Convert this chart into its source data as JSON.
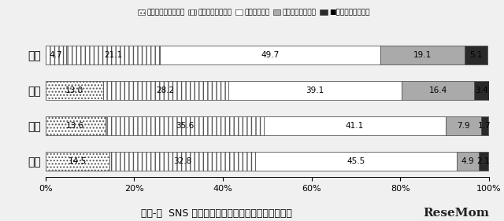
{
  "countries": [
    "日本",
    "米国",
    "中国",
    "韓国"
  ],
  "categories": [
    "非常に高くなった",
    "少し高くなった",
    "変わらない",
    "少し低くなった",
    "非常に低くなった"
  ],
  "values": [
    [
      4.7,
      21.1,
      49.7,
      19.1,
      5.1
    ],
    [
      13.0,
      28.2,
      39.1,
      16.4,
      3.4
    ],
    [
      13.6,
      35.6,
      41.1,
      7.9,
      1.7
    ],
    [
      14.5,
      32.8,
      45.5,
      4.9,
      2.1
    ]
  ],
  "colors": [
    "#ffffff",
    "#ffffff",
    "#ffffff",
    "#aaaaaa",
    "#2a2a2a"
  ],
  "hatches": [
    "....",
    "|||",
    "|||",
    "",
    ""
  ],
  "title": "図３-１  SNS の利用による学習に対する意欲の変化",
  "bg_color": "#f0f0f0",
  "legend_labels": [
    "非常に高くなった",
    "少し高くなった",
    "変わらない",
    "少し低くなった",
    "非常に低くなった"
  ],
  "legend_hatches": [
    "....",
    "|||",
    "|||",
    "",
    ""
  ],
  "legend_colors": [
    "#ffffff",
    "#ffffff",
    "#ffffff",
    "#aaaaaa",
    "#2a2a2a"
  ],
  "japan_first_hatch": "|||"
}
